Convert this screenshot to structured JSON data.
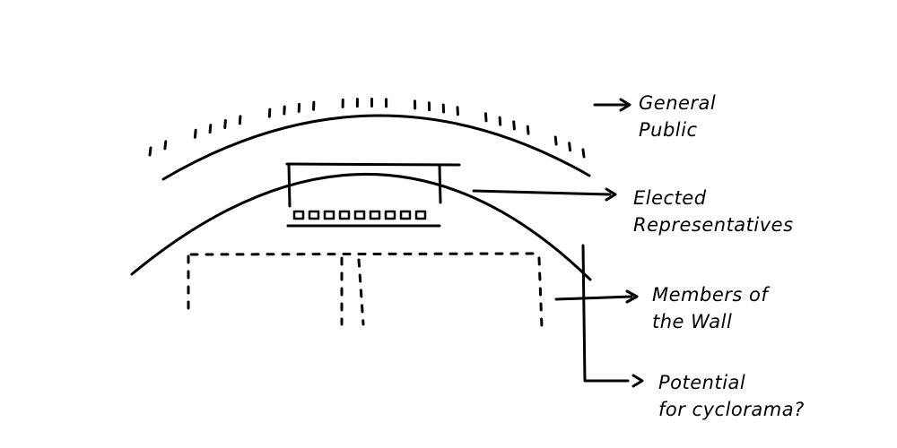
{
  "labels": {
    "general_public": [
      "General",
      "Public"
    ],
    "elected_representatives": [
      "Elected",
      "Representatives"
    ],
    "members_of_the_wall": [
      "Members of",
      "the Wall"
    ],
    "potential_for_cyclorama": [
      "Potential",
      "for cyclorama?"
    ]
  },
  "colors": {
    "ink": "#000000",
    "paper": "#ffffff"
  }
}
